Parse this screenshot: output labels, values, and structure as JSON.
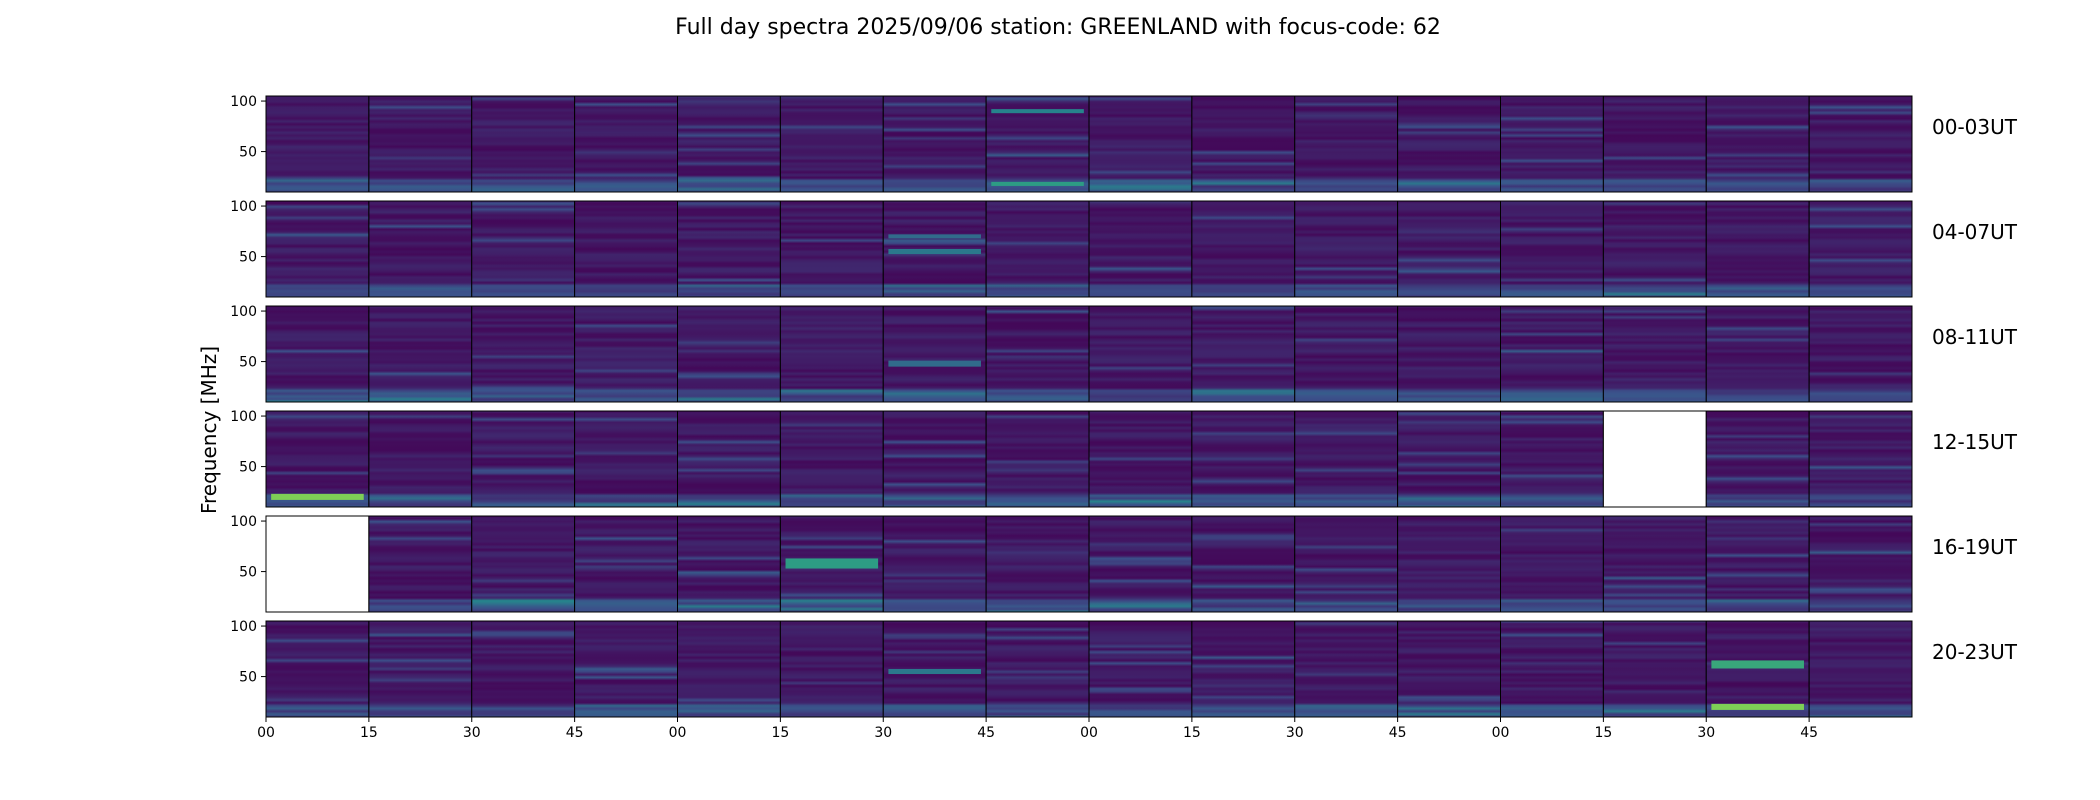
{
  "chart_data": {
    "type": "heatmap",
    "title": "Full day spectra 2025/09/06 station: GREENLAND with focus-code: 62",
    "ylabel": "Frequency [MHz]",
    "xlabel": "",
    "ylim": [
      10,
      105
    ],
    "y_ticks": [
      50,
      100
    ],
    "x_tick_labels": [
      "00",
      "15",
      "30",
      "45",
      "00",
      "15",
      "30",
      "45",
      "00",
      "15",
      "30",
      "45",
      "00",
      "15",
      "30",
      "45"
    ],
    "colormap": [
      "#440154",
      "#3b528b",
      "#21918c",
      "#5ec962",
      "#fde725"
    ],
    "panels_per_row": 16,
    "rows": [
      {
        "label": "00-03UT",
        "missing": []
      },
      {
        "label": "04-07UT",
        "missing": []
      },
      {
        "label": "08-11UT",
        "missing": []
      },
      {
        "label": "12-15UT",
        "missing": [
          13
        ]
      },
      {
        "label": "16-19UT",
        "missing": [
          0
        ]
      },
      {
        "label": "20-23UT",
        "missing": []
      }
    ],
    "bright_features": [
      {
        "row": 0,
        "panel": 7,
        "freq_mhz": 18,
        "width_mhz": 4,
        "intensity": 0.55
      },
      {
        "row": 0,
        "panel": 7,
        "freq_mhz": 90,
        "width_mhz": 4,
        "intensity": 0.45
      },
      {
        "row": 1,
        "panel": 6,
        "freq_mhz": 55,
        "width_mhz": 5,
        "intensity": 0.4
      },
      {
        "row": 1,
        "panel": 6,
        "freq_mhz": 70,
        "width_mhz": 4,
        "intensity": 0.35
      },
      {
        "row": 2,
        "panel": 6,
        "freq_mhz": 48,
        "width_mhz": 6,
        "intensity": 0.35
      },
      {
        "row": 3,
        "panel": 0,
        "freq_mhz": 20,
        "width_mhz": 6,
        "intensity": 0.8
      },
      {
        "row": 4,
        "panel": 5,
        "freq_mhz": 58,
        "width_mhz": 10,
        "intensity": 0.55
      },
      {
        "row": 5,
        "panel": 14,
        "freq_mhz": 20,
        "width_mhz": 6,
        "intensity": 0.8
      },
      {
        "row": 5,
        "panel": 14,
        "freq_mhz": 62,
        "width_mhz": 8,
        "intensity": 0.6
      },
      {
        "row": 5,
        "panel": 6,
        "freq_mhz": 55,
        "width_mhz": 5,
        "intensity": 0.4
      }
    ]
  }
}
